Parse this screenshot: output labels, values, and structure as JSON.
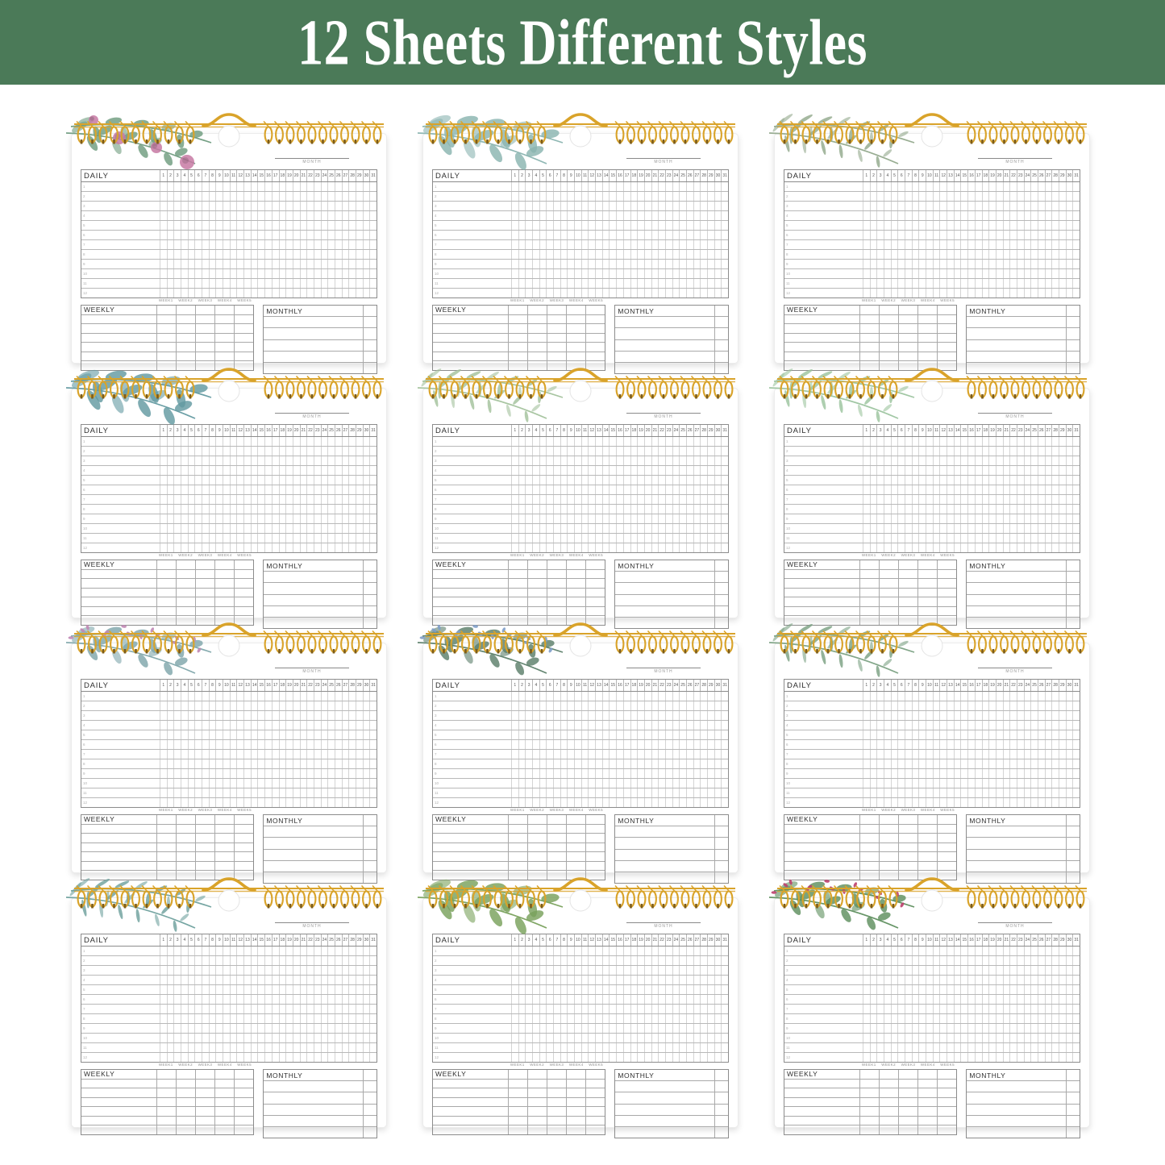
{
  "banner": {
    "title": "12 Sheets Different Styles",
    "bg_color": "#4b7a58",
    "text_color": "#ffffff"
  },
  "binding": {
    "style": "gold-twin-loop-spiral-with-center-hanging-hook",
    "wire_color": "#d9a32a",
    "tip_color": "#7b5c1c"
  },
  "sheet_labels": {
    "daily": "DAILY",
    "weekly": "WEEKLY",
    "monthly": "MONTHLY",
    "month": "MONTH",
    "week_headers": [
      "WEEK1",
      "WEEK2",
      "WEEK3",
      "WEEK4",
      "WEEK5"
    ],
    "day_numbers": [
      1,
      2,
      3,
      4,
      5,
      6,
      7,
      8,
      9,
      10,
      11,
      12,
      13,
      14,
      15,
      16,
      17,
      18,
      19,
      20,
      21,
      22,
      23,
      24,
      25,
      26,
      27,
      28,
      29,
      30,
      31
    ],
    "daily_row_numbers": [
      1,
      2,
      3,
      4,
      5,
      6,
      7,
      8,
      9,
      10,
      11,
      12
    ],
    "weekly_data_rows": 6,
    "monthly_data_rows": 5
  },
  "sheets": [
    {
      "id": 1,
      "floral": "pink-peony-branch",
      "type": "blossom",
      "leaf_color": "#6f9c7f",
      "accent_color": "#c779a3"
    },
    {
      "id": 2,
      "floral": "teal-eucalyptus-branch",
      "type": "branch",
      "leaf_color": "#8ab4b0",
      "accent_color": "#8ab4b0"
    },
    {
      "id": 3,
      "floral": "sage-wispy-branch",
      "type": "fern",
      "leaf_color": "#92a98c",
      "accent_color": "#92a98c"
    },
    {
      "id": 4,
      "floral": "blue-green-eucalyptus",
      "type": "branch",
      "leaf_color": "#639aa1",
      "accent_color": "#639aa1"
    },
    {
      "id": 5,
      "floral": "soft-green-fronds",
      "type": "fern",
      "leaf_color": "#a3c29c",
      "accent_color": "#a3c29c"
    },
    {
      "id": 6,
      "floral": "pale-green-fern",
      "type": "fern",
      "leaf_color": "#9cc49f",
      "accent_color": "#9cc49f"
    },
    {
      "id": 7,
      "floral": "lavender-spike-branch",
      "type": "spike",
      "leaf_color": "#7fa6ab",
      "accent_color": "#c087b4"
    },
    {
      "id": 8,
      "floral": "blue-wildflowers",
      "type": "spike",
      "leaf_color": "#5c7f6a",
      "accent_color": "#7e9dc8"
    },
    {
      "id": 9,
      "floral": "rosemary-needles",
      "type": "fern",
      "leaf_color": "#7ba183",
      "accent_color": "#7ba183"
    },
    {
      "id": 10,
      "floral": "teal-pine-needles",
      "type": "fern",
      "leaf_color": "#6fa19e",
      "accent_color": "#6fa19e"
    },
    {
      "id": 11,
      "floral": "olive-pinnate-leaves",
      "type": "branch",
      "leaf_color": "#79a15c",
      "accent_color": "#79a15c"
    },
    {
      "id": 12,
      "floral": "magenta-petal-spikes",
      "type": "spike",
      "leaf_color": "#5e8f5e",
      "accent_color": "#bc3f6c"
    }
  ]
}
